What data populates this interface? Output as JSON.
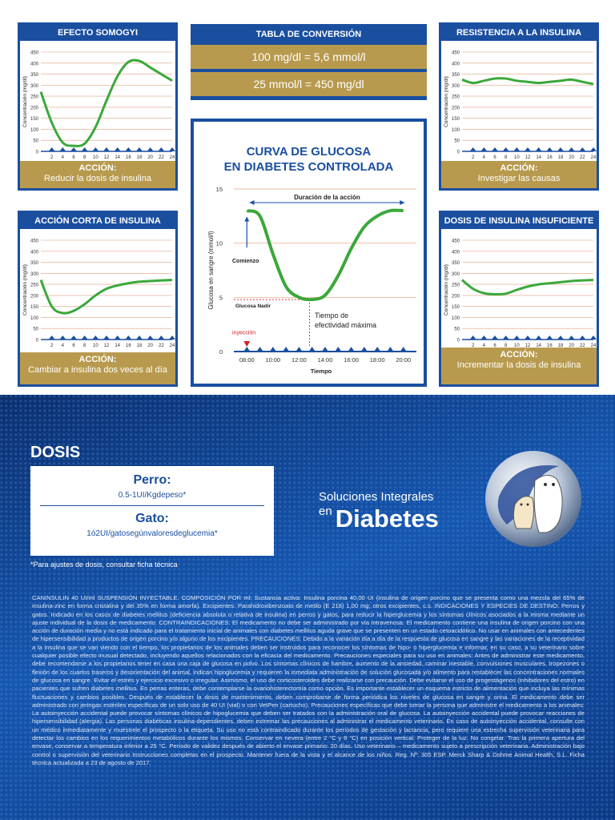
{
  "panels": {
    "somogyi": {
      "title": "EFECTO SOMOGYI",
      "action_label": "ACCIÓN:",
      "action_text": "Reducir la dosis de insulina"
    },
    "resistencia": {
      "title": "RESISTENCIA A LA INSULINA",
      "action_label": "ACCIÓN:",
      "action_text": "Investigar las causas"
    },
    "corta": {
      "title": "ACCIÓN CORTA DE INSULINA",
      "action_label": "ACCIÓN:",
      "action_text": "Cambiar a insulina dos veces al día"
    },
    "insuficiente": {
      "title": "DOSIS DE INSULINA INSUFICIENTE",
      "action_label": "ACCIÓN:",
      "action_text": "Incrementar la dosis de insulina"
    }
  },
  "small_chart": {
    "ylabel": "Concentración (mg/dl)",
    "xlabel": "Tiempo (h)",
    "y_ticks": [
      "450",
      "400",
      "350",
      "300",
      "250",
      "200",
      "150",
      "100",
      "50",
      "0"
    ],
    "x_ticks": [
      "2",
      "4",
      "6",
      "8",
      "10",
      "12",
      "14",
      "16",
      "18",
      "20",
      "22",
      "24"
    ]
  },
  "conversion": {
    "title": "TABLA DE CONVERSIÓN",
    "row1": "100 mg/dl = 5,6 mmol/l",
    "row2": "25 mmol/l = 450 mg/dl"
  },
  "center": {
    "title1": "CURVA DE GLUCOSA",
    "title2": "EN DIABETES CONTROLADA",
    "duracion": "Duración de la acción",
    "comienzo": "Comienzo",
    "nadir": "Glucosa Nadir",
    "efect1": "Tiempo de",
    "efect2": "efectividad máxima",
    "inyeccion": "inyección",
    "ylabel": "Glucosa en sangre (mmol/l)",
    "xlabel": "Tiempo",
    "y_ticks": [
      "15",
      "10",
      "5",
      "0"
    ],
    "x_ticks": [
      "08:00",
      "10:00",
      "12:00",
      "14:00",
      "16:00",
      "18:00",
      "20:00"
    ]
  },
  "chart_data": [
    {
      "type": "line",
      "title": "EFECTO SOMOGYI",
      "x": [
        0,
        2,
        4,
        6,
        8,
        10,
        12,
        14,
        16,
        18,
        20,
        22,
        24
      ],
      "y": [
        270,
        130,
        40,
        25,
        35,
        110,
        230,
        340,
        405,
        410,
        380,
        350,
        320
      ],
      "ylim": [
        0,
        450
      ],
      "xlim": [
        0,
        24
      ]
    },
    {
      "type": "line",
      "title": "RESISTENCIA A LA INSULINA",
      "x": [
        0,
        2,
        4,
        6,
        8,
        10,
        12,
        14,
        16,
        18,
        20,
        22,
        24
      ],
      "y": [
        325,
        310,
        320,
        330,
        330,
        320,
        315,
        310,
        315,
        320,
        325,
        315,
        305
      ],
      "ylim": [
        0,
        450
      ],
      "xlim": [
        0,
        24
      ]
    },
    {
      "type": "line",
      "title": "ACCIÓN CORTA DE INSULINA",
      "x": [
        0,
        2,
        4,
        6,
        8,
        10,
        12,
        14,
        16,
        18,
        20,
        22,
        24
      ],
      "y": [
        270,
        150,
        120,
        130,
        160,
        200,
        230,
        245,
        255,
        262,
        265,
        268,
        270
      ],
      "ylim": [
        0,
        450
      ],
      "xlim": [
        0,
        24
      ]
    },
    {
      "type": "line",
      "title": "DOSIS DE INSULINA INSUFICIENTE",
      "x": [
        0,
        2,
        4,
        6,
        8,
        10,
        12,
        14,
        16,
        18,
        20,
        22,
        24
      ],
      "y": [
        270,
        230,
        210,
        205,
        208,
        225,
        240,
        250,
        255,
        260,
        265,
        268,
        270
      ],
      "ylim": [
        0,
        450
      ],
      "xlim": [
        0,
        24
      ]
    },
    {
      "type": "line",
      "title": "CURVA DE GLUCOSA EN DIABETES CONTROLADA",
      "x": [
        8,
        9,
        10,
        11,
        12,
        13,
        14,
        15,
        16,
        17,
        18,
        19,
        20
      ],
      "y": [
        13,
        12.5,
        9,
        6,
        5,
        4.8,
        5.2,
        7,
        9.5,
        11.5,
        12.5,
        13,
        13
      ],
      "ylim": [
        0,
        15
      ],
      "xlabel": "Tiempo",
      "ylabel": "Glucosa en sangre (mmol/l)"
    }
  ],
  "dosis": {
    "title": "DOSIS",
    "perro_h": "Perro:",
    "perro_v": "0.5-1UI/Kgdepeso*",
    "gato_h": "Gato:",
    "gato_v": "1ó2UI/gatosegúnvaloresdeglucemia*",
    "note": "*Para ajustes de dosis, consultar ficha técnica"
  },
  "brand": {
    "line1": "Soluciones Integrales",
    "en": "en",
    "line2": "Diabetes"
  },
  "legal": "CANINSULIN 40 UI/ml SUSPENSIÓN INYECTABLE. COMPOSICIÓN POR ml: Sustancia activa: Insulina porcina 40,00 UI (insulina de origen porcino que se presenta como una mezcla del 65% de insulina-zinc en forma cristalina y del 35% en forma amorfa). Excipientes: Parahidroxibenzoato de metilo (E 218) 1,00 mg; otros excipientes, c.s. INDICACIONES Y ESPECIES DE DESTINO: Perros y gatos. Indicado en los casos de diabetes mellitus (deficiencia absoluta o relativa de insulina) en perros y gatos, para reducir la hiperglucemia y los síntomas clínicos asociados a la misma mediante un ajuste individual de la dosis de medicamento. CONTRAINDICACIONES: El medicamento no debe ser administrado por vía intravenosa. El medicamento contiene una insulina de origen porcino con una acción de duración media y no está indicado para el tratamiento inicial de animales con diabetes mellitus aguda grave que se presenten en un estado cetoacidótico. No usar en animales con antecedentes de hipersensibilidad a productos de origen porcino y/o alguno de los excipientes. PRECAUCIONES: Debido a la variación día a día de la respuesta de glucosa en sangre y las variaciones de la receptividad a la insulina que se van viendo con el tiempo, los propietarios de los animales deben ser instruidos para reconocer los síntomas de hipo- o hiperglucemia e informar, en su caso, a su veterinario sobre cualquier posible efecto inusual detectado, incluyendo aquellos relacionados con la eficacia del medicamento. Precauciones especiales para su uso en animales: Antes de administrar este medicamento, debe recomendarse a los propietarios tener en casa una caja de glucosa en polvo. Los síntomas clínicos de hambre, aumento de la ansiedad, caminar inestable, convulsiones musculares, tropezones o flexión de los cuartos traseros y desorientación del animal, indican hipoglucemia y requieren la inmediata administración de solución glucosada y/o alimento para restablecer las concentraciones normales de glucosa en sangre. Evitar el estrés y ejercicio excesivo o irregular. Asimismo, el uso de corticosteroides debe realizarse con precaución. Debe evitarse el uso de progestágenos (inhibidores del estro) en pacientes que sufren diabetes mellitus. En perras enteras, debe contemplarse la ovariohisterectomía como opción. Es importante establecer un esquema estricto de alimentación que incluya las mínimas fluctuaciones y cambios posibles. Después de establecer la dosis de mantenimiento, deben comprobarse de forma periódica los niveles de glucosa en sangre y orina. El medicamento debe ser administrado con jeringas estériles específicas de un solo uso de 40 UI (vial) o con VetPen (cartucho). Precauciones específicas que debe tomar la persona que administre el medicamento a los animales: La autoinyección accidental puede provocar síntomas clínicos de hipoglucemia que deben ser tratados con la administración oral de glucosa. La autoinyección accidental puede provocar reacciones de hipersensibilidad (alergia). Las personas diabéticas insulina-dependientes, deben extremar las precauciones al administrar el medicamento veterinario. En caso de autoinyección accidental, consulte con un médico inmediatamente y muéstrele el prospecto o la etiqueta. Su uso no está contraindicado durante los períodos de gestación y lactancia, pero requiere una estrecha supervisión veterinaria para detectar los cambios en los requerimientos metabólicos durante los mismos. Conservar en nevera (entre 2 °C y 8 °C) en posición vertical. Proteger de la luz. No congelar. Tras la primera apertura del envase, conservar a temperatura inferior a 25 °C. Período de validez después de abierto el envase primario: 20 días. Uso veterinario – medicamento sujeto a prescripción veterinaria. Administración bajo control o supervisión del veterinario Instrucciones completas en el prospecto. Mantener fuera de la vista y el alcance de los niños. Reg. Nº: 305 ESP. Merck Sharp & Dohme Animal Health, S.L. Ficha técnica actualizada a 23 de agosto de 2017.",
  "colors": {
    "blue": "#1a4fa0",
    "gold": "#b89a4e",
    "curve": "#3aa83a",
    "grid": "#e0a080"
  }
}
